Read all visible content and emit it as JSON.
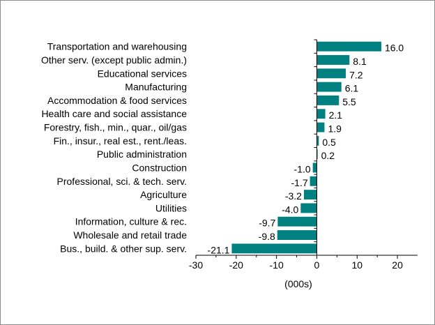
{
  "chart_data": {
    "type": "bar",
    "orientation": "horizontal",
    "categories": [
      "Transportation and warehousing",
      "Other serv. (except public admin.)",
      "Educational services",
      "Manufacturing",
      "Accommodation & food services",
      "Health care and social assistance",
      "Forestry, fish., min., quar., oil/gas",
      "Fin., insur., real est., rent./leas.",
      "Public administration",
      "Construction",
      "Professional, sci. & tech. serv.",
      "Agriculture",
      "Utilities",
      "Information, culture & rec.",
      "Wholesale and retail trade",
      "Bus., build. & other sup. serv."
    ],
    "values": [
      16.0,
      8.1,
      7.2,
      6.1,
      5.5,
      2.1,
      1.9,
      0.5,
      0.2,
      -1.0,
      -1.7,
      -3.2,
      -4.0,
      -9.7,
      -9.8,
      -21.1
    ],
    "value_labels": [
      "16.0",
      "8.1",
      "7.2",
      "6.1",
      "5.5",
      "2.1",
      "1.9",
      "0.5",
      "0.2",
      "-1.0",
      "-1.7",
      "-3.2",
      "-4.0",
      "-9.7",
      "-9.8",
      "-21.1"
    ],
    "xlim": [
      -30,
      25
    ],
    "xticks": [
      -30,
      -20,
      -10,
      0,
      10,
      20
    ],
    "xtick_labels": [
      "-30",
      "-20",
      "-10",
      "0",
      "10",
      "20"
    ],
    "xlabel": "(000s)",
    "title": "",
    "grid": false,
    "legend": "none",
    "bar_color": "#008080"
  }
}
